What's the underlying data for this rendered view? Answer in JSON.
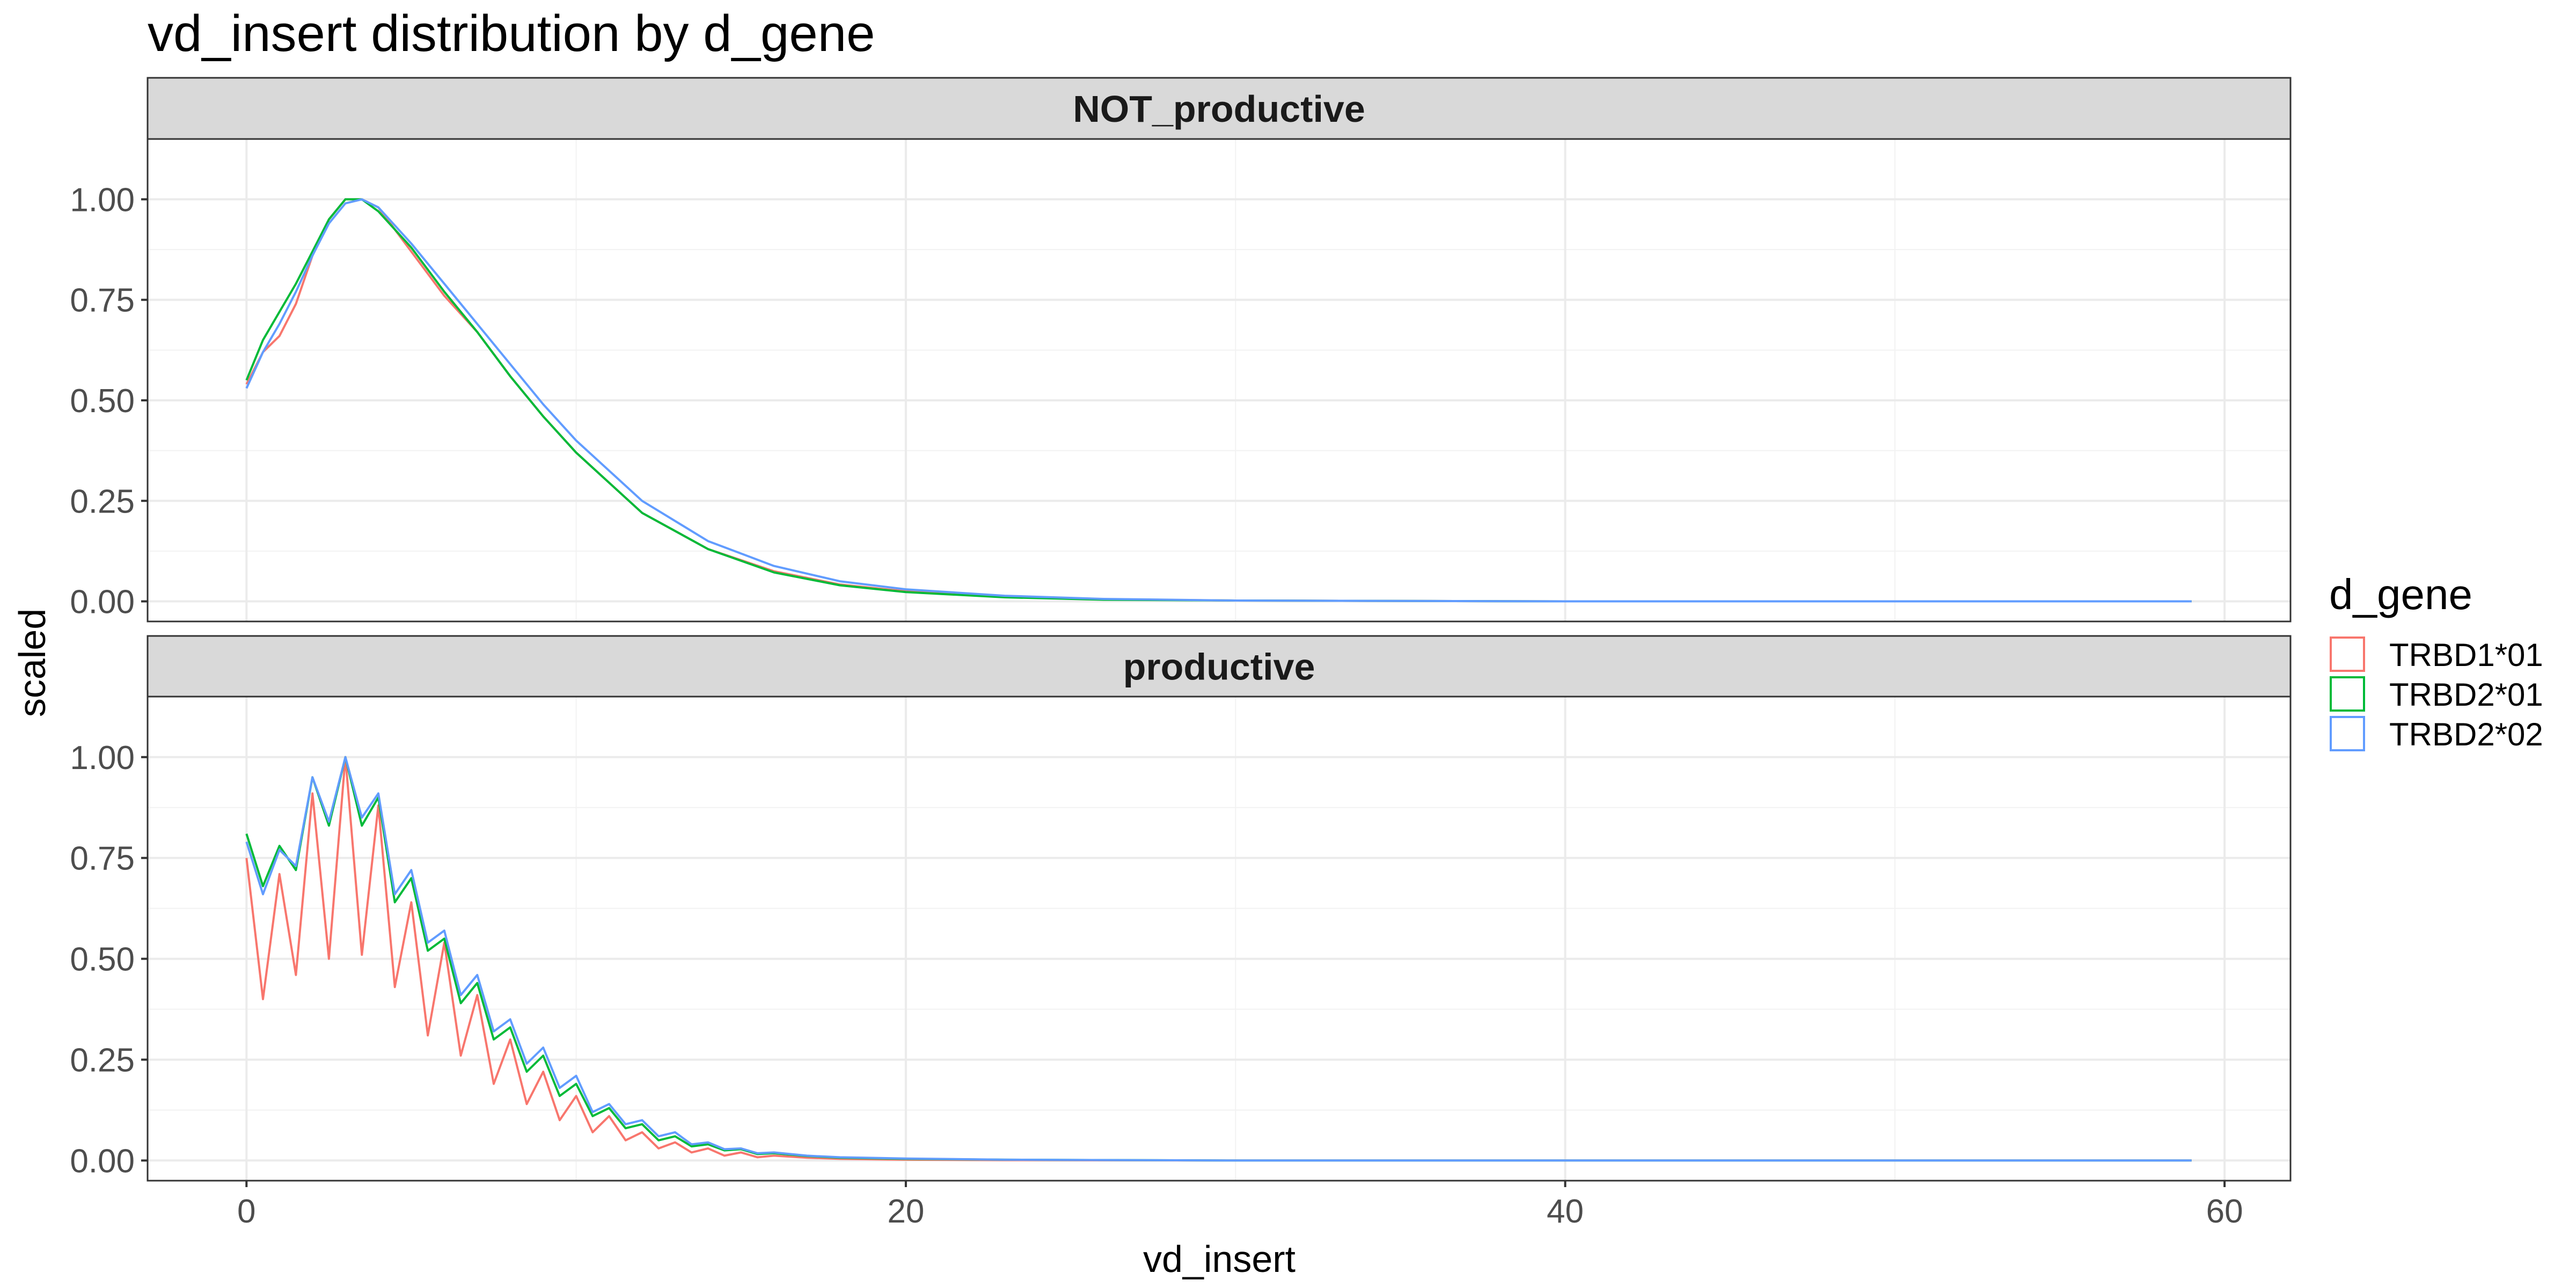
{
  "chart_data": {
    "type": "line",
    "title": "vd_insert distribution by d_gene",
    "xlabel": "vd_insert",
    "ylabel": "scaled",
    "xlim": [
      -3,
      62
    ],
    "ylim": [
      -0.05,
      1.15
    ],
    "x_ticks": [
      0,
      20,
      40,
      60
    ],
    "x_tick_labels": [
      "0",
      "20",
      "40",
      "60"
    ],
    "y_ticks": [
      0,
      0.25,
      0.5,
      0.75,
      1
    ],
    "y_tick_labels": [
      "0.00",
      "0.25",
      "0.50",
      "0.75",
      "1.00"
    ],
    "grid": true,
    "legend": {
      "title": "d_gene",
      "placement": "right",
      "entries": [
        "TRBD1*01",
        "TRBD2*01",
        "TRBD2*02"
      ]
    },
    "colors": {
      "TRBD1*01": "#F8766D",
      "TRBD2*01": "#00BA38",
      "TRBD2*02": "#619CFF"
    },
    "panels": [
      {
        "label": "NOT_productive",
        "series": [
          {
            "name": "TRBD1*01",
            "x": [
              0,
              0.5,
              1,
              1.5,
              2,
              2.5,
              3,
              3.5,
              4,
              5,
              6,
              7,
              8,
              9,
              10,
              12,
              14,
              16,
              18,
              20,
              23,
              26,
              30,
              35,
              40,
              50,
              59
            ],
            "y": [
              0.54,
              0.62,
              0.66,
              0.74,
              0.86,
              0.95,
              1.0,
              1.0,
              0.98,
              0.87,
              0.76,
              0.67,
              0.56,
              0.46,
              0.37,
              0.22,
              0.13,
              0.075,
              0.042,
              0.025,
              0.011,
              0.005,
              0.002,
              0.001,
              0.0,
              0.0,
              0.0
            ]
          },
          {
            "name": "TRBD2*01",
            "x": [
              0,
              0.5,
              1,
              1.5,
              2,
              2.5,
              3,
              3.5,
              4,
              5,
              6,
              7,
              8,
              9,
              10,
              12,
              14,
              16,
              18,
              20,
              23,
              26,
              30,
              35,
              40,
              50,
              59
            ],
            "y": [
              0.55,
              0.65,
              0.72,
              0.79,
              0.87,
              0.95,
              1.0,
              1.0,
              0.97,
              0.88,
              0.77,
              0.67,
              0.56,
              0.46,
              0.37,
              0.22,
              0.13,
              0.072,
              0.04,
              0.023,
              0.01,
              0.004,
              0.002,
              0.001,
              0.0,
              0.0,
              0.0
            ]
          },
          {
            "name": "TRBD2*02",
            "x": [
              0,
              0.5,
              1,
              1.5,
              2,
              2.5,
              3,
              3.5,
              4,
              5,
              6,
              7,
              8,
              9,
              10,
              12,
              14,
              16,
              18,
              20,
              23,
              26,
              30,
              35,
              40,
              50,
              59
            ],
            "y": [
              0.53,
              0.62,
              0.69,
              0.77,
              0.86,
              0.94,
              0.99,
              1.0,
              0.98,
              0.89,
              0.79,
              0.69,
              0.59,
              0.49,
              0.4,
              0.25,
              0.15,
              0.088,
              0.05,
              0.03,
              0.014,
              0.006,
              0.002,
              0.001,
              0.0,
              0.0,
              0.0
            ]
          }
        ]
      },
      {
        "label": "productive",
        "series": [
          {
            "name": "TRBD1*01",
            "x": [
              0,
              0.5,
              1,
              1.5,
              2,
              2.5,
              3,
              3.5,
              4,
              4.5,
              5,
              5.5,
              6,
              6.5,
              7,
              7.5,
              8,
              8.5,
              9,
              9.5,
              10,
              10.5,
              11,
              11.5,
              12,
              12.5,
              13,
              13.5,
              14,
              14.5,
              15,
              15.5,
              16,
              17,
              18,
              20,
              23,
              30,
              40,
              50,
              59
            ],
            "y": [
              0.75,
              0.4,
              0.71,
              0.46,
              0.91,
              0.5,
              1.0,
              0.51,
              0.88,
              0.43,
              0.64,
              0.31,
              0.54,
              0.26,
              0.41,
              0.19,
              0.3,
              0.14,
              0.22,
              0.1,
              0.16,
              0.07,
              0.11,
              0.05,
              0.07,
              0.03,
              0.045,
              0.02,
              0.03,
              0.012,
              0.02,
              0.008,
              0.012,
              0.007,
              0.004,
              0.002,
              0.001,
              0.0,
              0.0,
              0.0,
              0.0
            ]
          },
          {
            "name": "TRBD2*01",
            "x": [
              0,
              0.5,
              1,
              1.5,
              2,
              2.5,
              3,
              3.5,
              4,
              4.5,
              5,
              5.5,
              6,
              6.5,
              7,
              7.5,
              8,
              8.5,
              9,
              9.5,
              10,
              10.5,
              11,
              11.5,
              12,
              12.5,
              13,
              13.5,
              14,
              14.5,
              15,
              15.5,
              16,
              17,
              18,
              20,
              23,
              30,
              40,
              50,
              59
            ],
            "y": [
              0.81,
              0.68,
              0.78,
              0.72,
              0.95,
              0.83,
              1.0,
              0.83,
              0.9,
              0.64,
              0.7,
              0.52,
              0.55,
              0.39,
              0.44,
              0.3,
              0.33,
              0.22,
              0.26,
              0.16,
              0.19,
              0.11,
              0.13,
              0.08,
              0.09,
              0.05,
              0.06,
              0.035,
              0.04,
              0.025,
              0.028,
              0.016,
              0.018,
              0.011,
              0.007,
              0.004,
              0.002,
              0.0,
              0.0,
              0.0,
              0.0
            ]
          },
          {
            "name": "TRBD2*02",
            "x": [
              0,
              0.5,
              1,
              1.5,
              2,
              2.5,
              3,
              3.5,
              4,
              4.5,
              5,
              5.5,
              6,
              6.5,
              7,
              7.5,
              8,
              8.5,
              9,
              9.5,
              10,
              10.5,
              11,
              11.5,
              12,
              12.5,
              13,
              13.5,
              14,
              14.5,
              15,
              15.5,
              16,
              17,
              18,
              20,
              23,
              30,
              40,
              50,
              59
            ],
            "y": [
              0.79,
              0.66,
              0.77,
              0.73,
              0.95,
              0.84,
              1.0,
              0.85,
              0.91,
              0.66,
              0.72,
              0.54,
              0.57,
              0.41,
              0.46,
              0.32,
              0.35,
              0.24,
              0.28,
              0.18,
              0.21,
              0.12,
              0.14,
              0.09,
              0.1,
              0.06,
              0.07,
              0.04,
              0.045,
              0.028,
              0.03,
              0.018,
              0.02,
              0.012,
              0.008,
              0.005,
              0.002,
              0.0,
              0.0,
              0.0,
              0.0
            ]
          }
        ]
      }
    ]
  }
}
